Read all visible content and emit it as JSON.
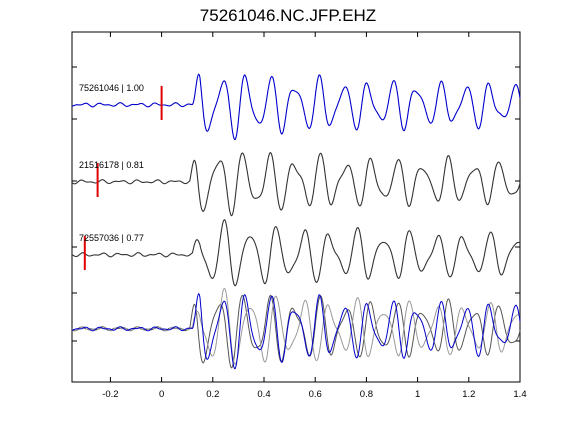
{
  "chart_data": {
    "type": "line",
    "title": "75261046.NC.JFP.EHZ",
    "xlabel": "",
    "ylabel": "",
    "xlim": [
      -0.35,
      1.4
    ],
    "xticks": [
      "-0.2",
      "0",
      "0.2",
      "0.4",
      "0.6",
      "0.8",
      "1",
      "1.2",
      "1.4"
    ],
    "grid": false,
    "colors": {
      "reference": "#0000cc",
      "other": "#333333",
      "pick": "#e00000",
      "axis": "#000000"
    },
    "traces": [
      {
        "label": "75261046 | 1.00",
        "pick_time": 0.0,
        "color": "#0000cc"
      },
      {
        "label": "21516178 | 0.81",
        "pick_time": -0.25,
        "color": "#333333"
      },
      {
        "label": "72557036 | 0.77",
        "pick_time": -0.3,
        "color": "#333333"
      }
    ]
  }
}
